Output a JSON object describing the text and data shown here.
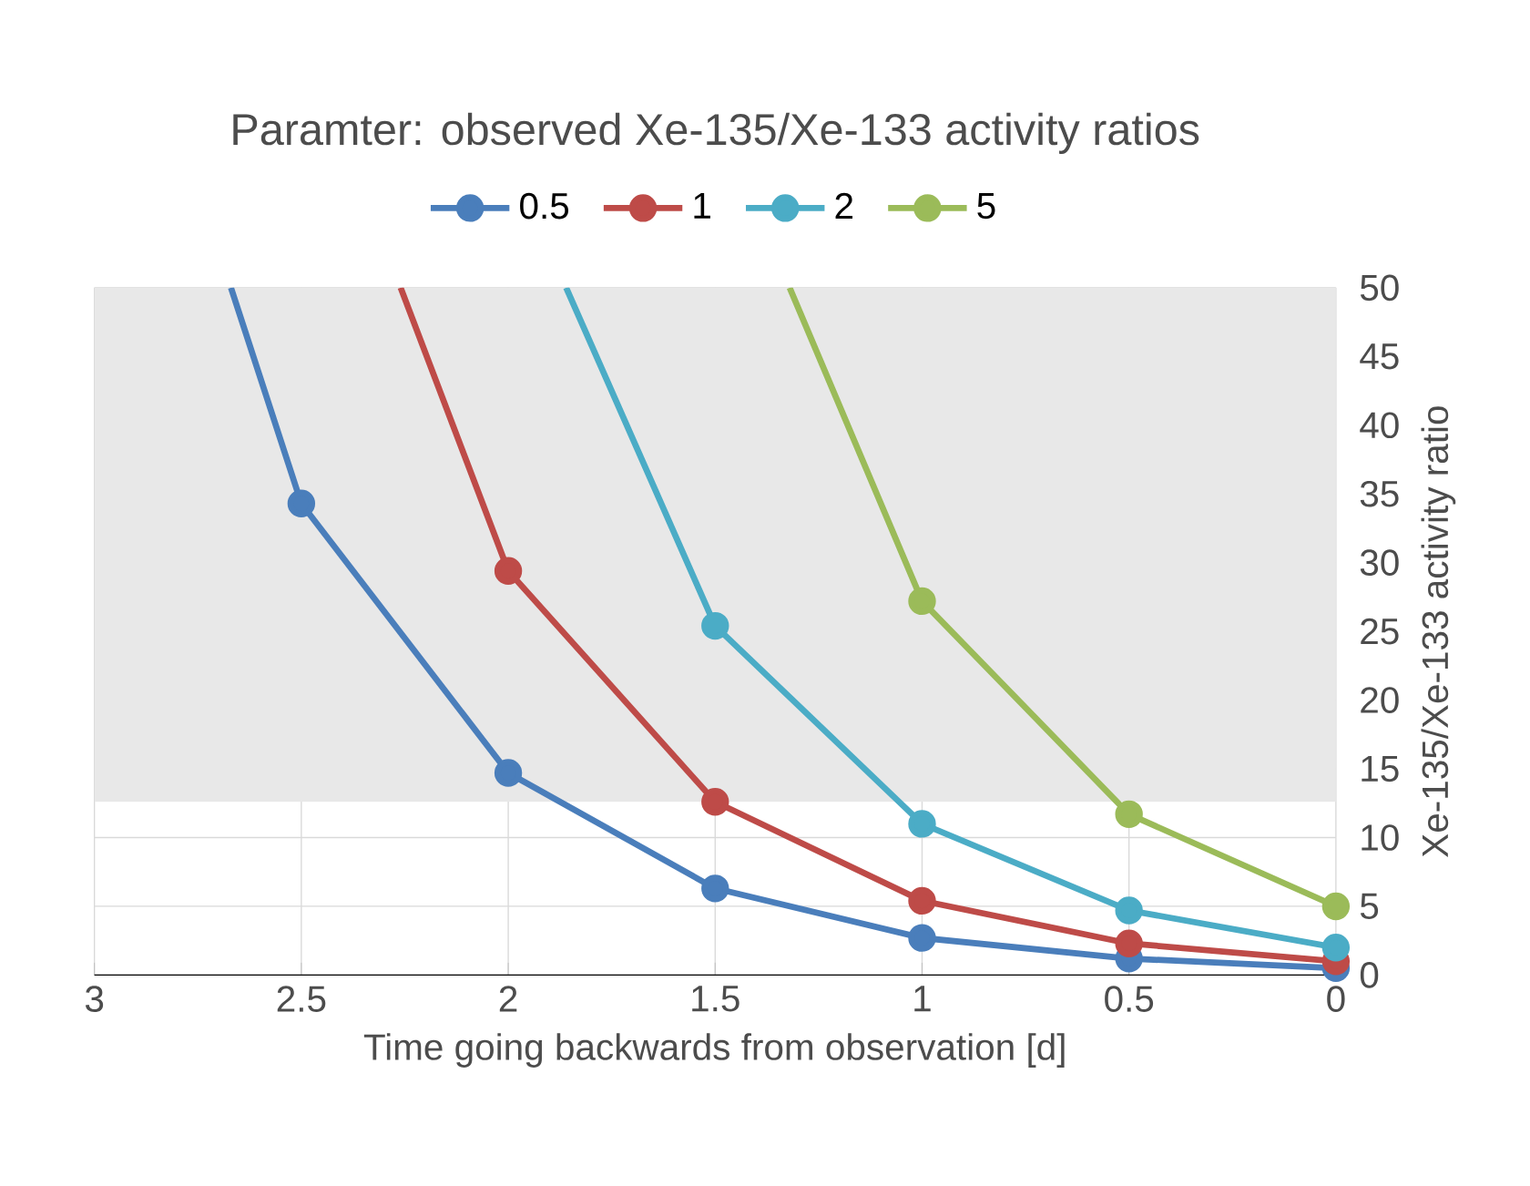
{
  "chart_data": {
    "type": "line",
    "title": "Paramter: observed Xe-135/Xe-133 activity ratios",
    "xlabel": "Time going backwards from observation  [d]",
    "ylabel": "Xe-135/Xe-133  activity ratio",
    "series": [
      {
        "name": "0.5",
        "color": "#4a7ebb",
        "x": [
          0,
          0.5,
          1,
          1.5,
          2,
          2.5,
          2.67
        ],
        "values": [
          0.5,
          1.2,
          2.7,
          6.3,
          14.7,
          34.3,
          50
        ]
      },
      {
        "name": "1",
        "color": "#be4b48",
        "x": [
          0,
          0.5,
          1,
          1.5,
          2,
          2.26
        ],
        "values": [
          1,
          2.3,
          5.4,
          12.6,
          29.4,
          50
        ]
      },
      {
        "name": "2",
        "color": "#4bacc6",
        "x": [
          0,
          0.5,
          1,
          1.5,
          1.86
        ],
        "values": [
          2,
          4.7,
          11,
          25.4,
          50
        ]
      },
      {
        "name": "5",
        "color": "#9bbb59",
        "x": [
          0,
          0.5,
          1,
          1.32
        ],
        "values": [
          5,
          11.7,
          27.2,
          50
        ]
      }
    ],
    "xlim": [
      3,
      0
    ],
    "xticks": [
      0,
      0.5,
      1,
      1.5,
      2,
      2.5,
      3
    ],
    "ylim": [
      0,
      50
    ],
    "yticks": [
      0,
      5,
      10,
      15,
      20,
      25,
      30,
      35,
      40,
      45,
      50
    ],
    "bands": [
      {
        "axis": "y",
        "from": 12.6,
        "to": 50,
        "color": "#e8e8e8"
      }
    ],
    "grid": true,
    "legend": "top",
    "marker": "circle",
    "line_style": "solid"
  }
}
